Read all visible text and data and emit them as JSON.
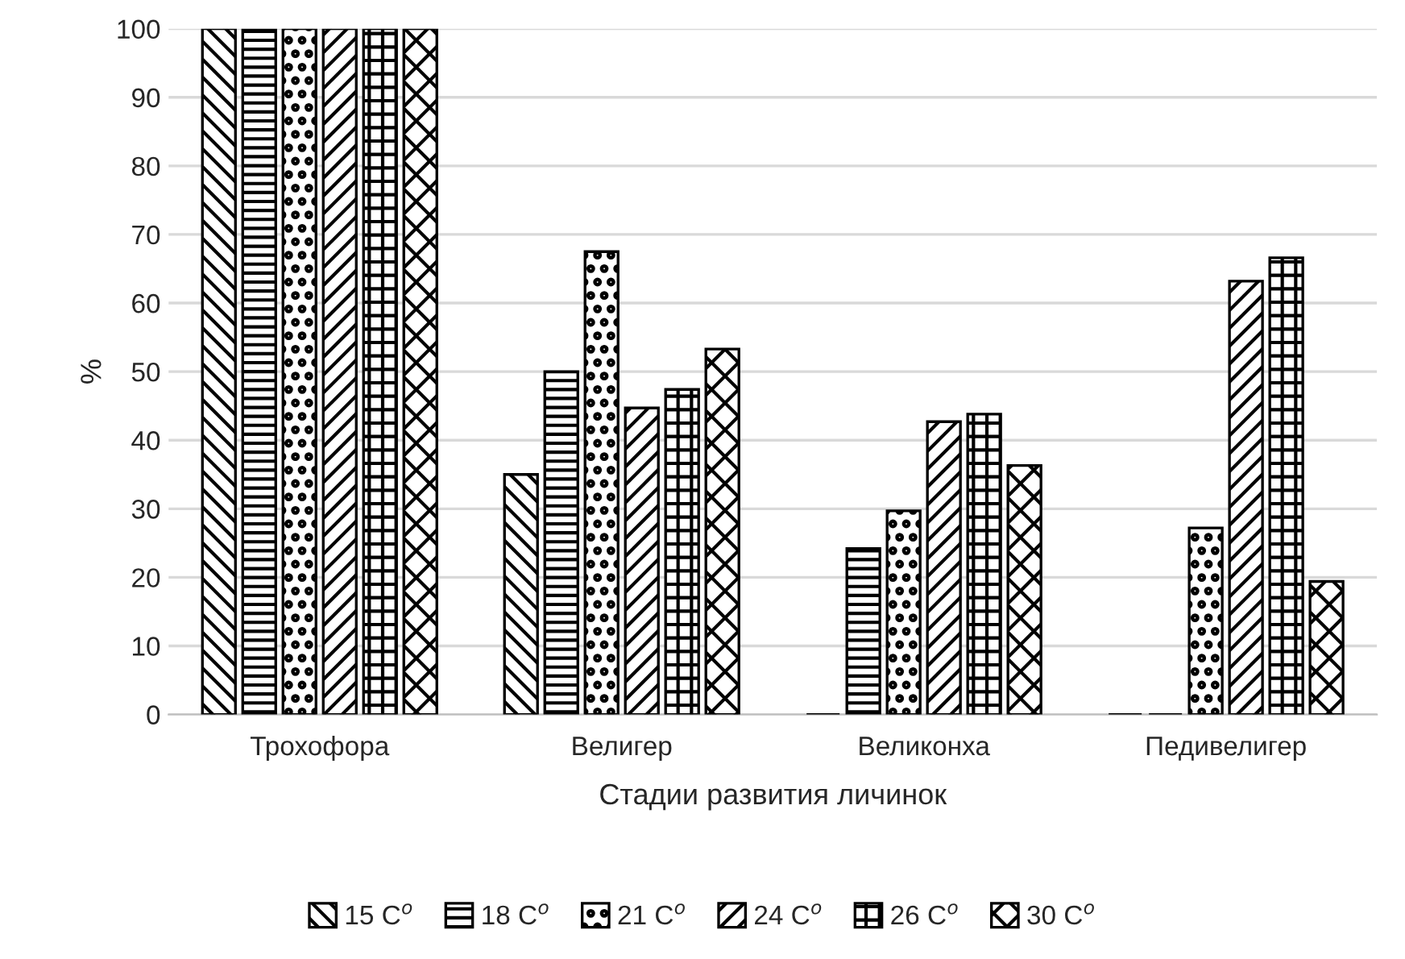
{
  "chart_data": {
    "type": "bar",
    "xlabel": "Стадии развития личинок",
    "ylabel": "%",
    "categories": [
      "Трохофора",
      "Велигер",
      "Великонха",
      "Педивелигер"
    ],
    "series": [
      {
        "name": "15 C$^{o}$",
        "color": "#000000",
        "values": [
          100,
          35,
          0,
          0
        ]
      },
      {
        "name": "18 C$^{o}$",
        "color": "#000000",
        "values": [
          100,
          50,
          24.2,
          0
        ]
      },
      {
        "name": "21 C$^{o}$",
        "color": "#000000",
        "values": [
          100,
          67.5,
          29.7,
          27.2
        ]
      },
      {
        "name": "24 C$^{o}$",
        "color": "#000000",
        "values": [
          100,
          44.7,
          42.7,
          63.2
        ]
      },
      {
        "name": "26 C$^{o}$",
        "color": "#000000",
        "values": [
          100,
          47.4,
          43.8,
          66.6
        ]
      },
      {
        "name": "30 C$^{o}$",
        "color": "#000000",
        "values": [
          100,
          53.3,
          36.3,
          19.4
        ]
      }
    ],
    "ylim": [
      0,
      100
    ],
    "yticks": [
      0,
      10,
      20,
      30,
      40,
      50,
      60,
      70,
      80,
      90,
      100
    ],
    "grid": "y",
    "legend": "bottom"
  }
}
